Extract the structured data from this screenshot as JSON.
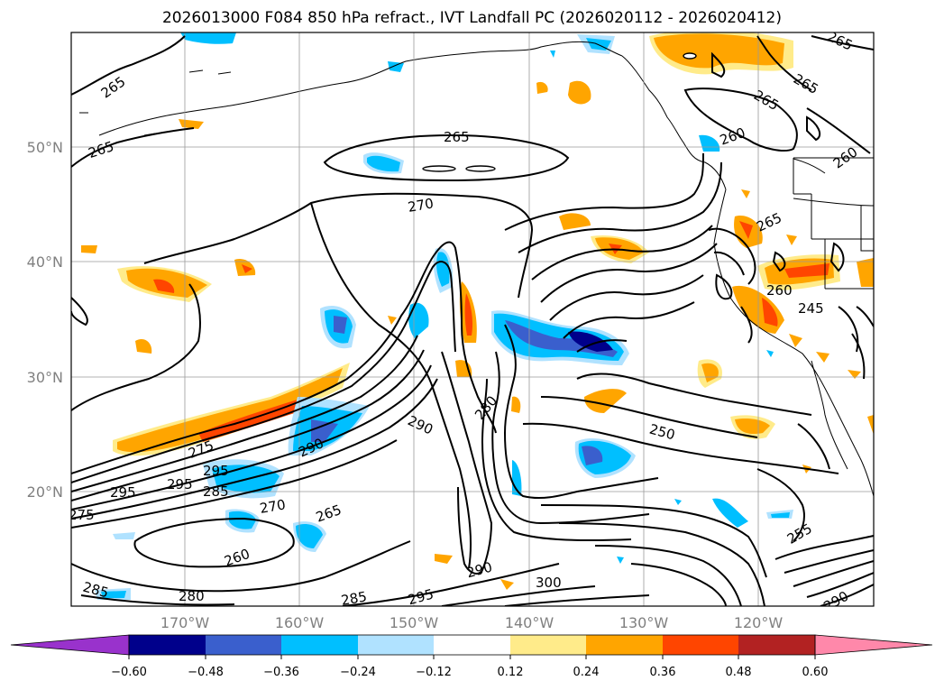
{
  "title": "2026013000 F084 850 hPa refract., IVT Landfall PC (2026020112 - 2026020412)",
  "lat_labels": [
    "50°N",
    "40°N",
    "30°N",
    "20°N"
  ],
  "lon_labels": [
    "170°W",
    "160°W",
    "150°W",
    "140°W",
    "130°W",
    "120°W"
  ],
  "contour_labels": [
    "265",
    "265",
    "265",
    "270",
    "265",
    "265",
    "265",
    "260",
    "265",
    "260",
    "260",
    "245",
    "275",
    "295",
    "295",
    "285",
    "295",
    "290",
    "290",
    "280",
    "250",
    "270",
    "265",
    "260",
    "255",
    "285",
    "280",
    "285",
    "295",
    "290",
    "300",
    "290",
    "275"
  ],
  "colorbar": {
    "ticks": [
      "−0.60",
      "−0.48",
      "−0.36",
      "−0.24",
      "−0.12",
      "0.12",
      "0.24",
      "0.36",
      "0.48",
      "0.60"
    ],
    "colors": [
      "#9932cc",
      "#00008b",
      "#3a5fcd",
      "#00bfff",
      "#b0e2ff",
      "#ffffff",
      "#ffeb8a",
      "#ffa500",
      "#ff4500",
      "#b22222",
      "#ff88aa"
    ]
  }
}
